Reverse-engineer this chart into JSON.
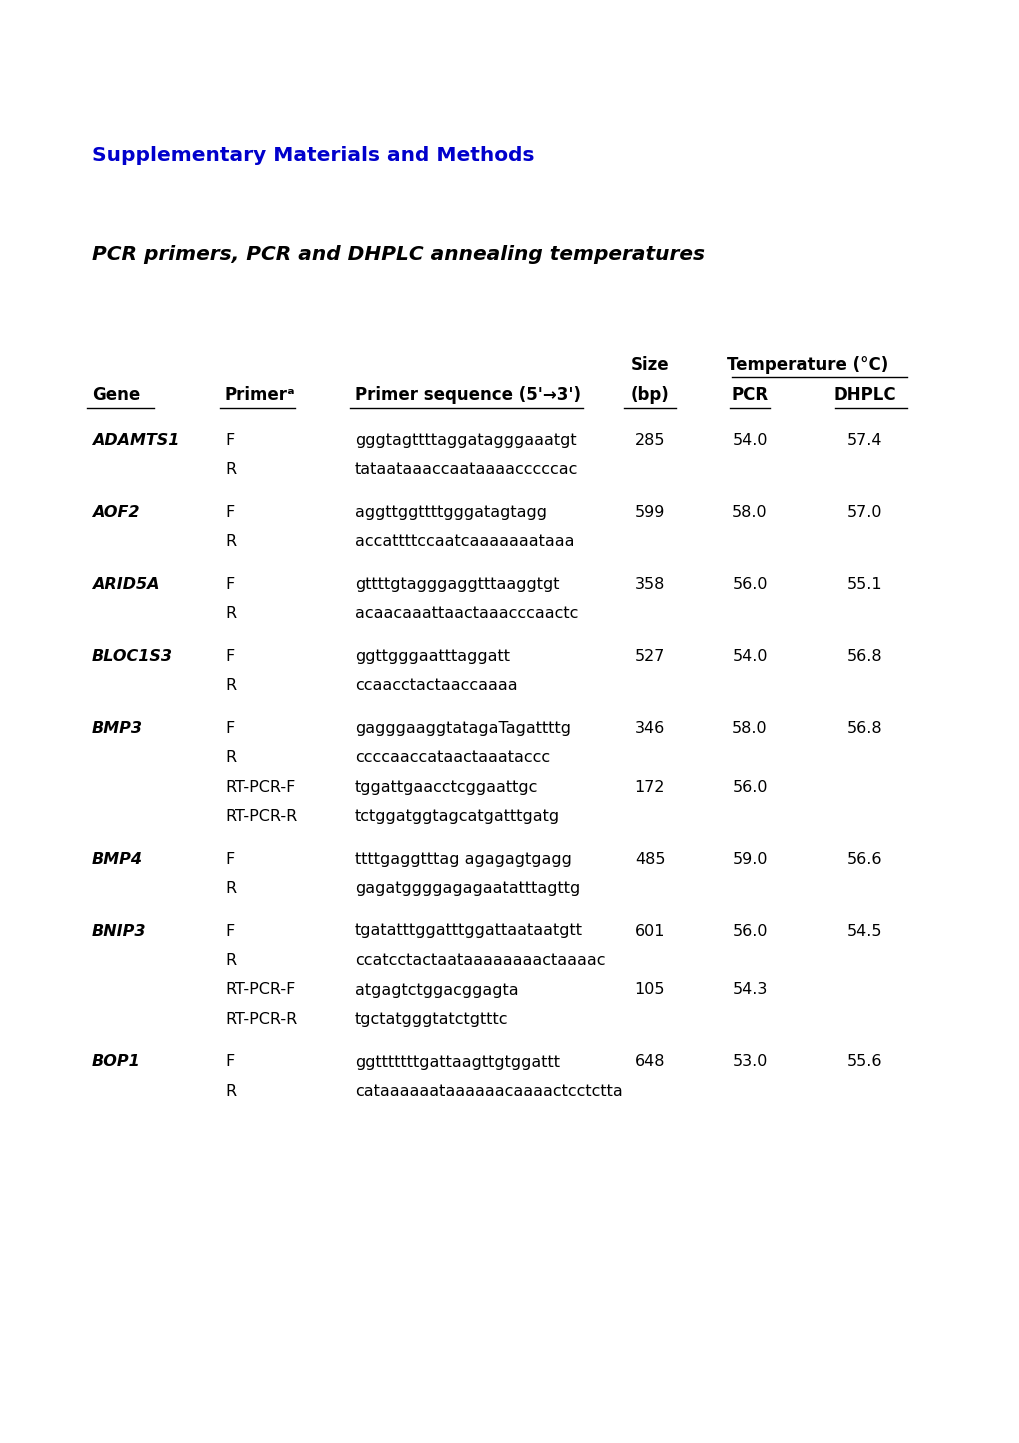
{
  "title_supplementary": "Supplementary Materials and Methods",
  "title_table": "PCR primers, PCR and DHPLC annealing temperatures",
  "bg_color": "#ffffff",
  "title_supp_color": "#0000cc",
  "title_table_color": "#000000",
  "rows": [
    {
      "gene": "ADAMTS1",
      "primer": "F",
      "sequence": "gggtagttttaggatagggaaatgt",
      "size": "285",
      "pcr": "54.0",
      "dhplc": "57.4"
    },
    {
      "gene": "",
      "primer": "R",
      "sequence": "tataataaaccaataaaacccccac",
      "size": "",
      "pcr": "",
      "dhplc": ""
    },
    {
      "gene": "AOF2",
      "primer": "F",
      "sequence": "aggttggttttgggatagtagg",
      "size": "599",
      "pcr": "58.0",
      "dhplc": "57.0"
    },
    {
      "gene": "",
      "primer": "R",
      "sequence": "accattttccaatcaaaaaaataaa",
      "size": "",
      "pcr": "",
      "dhplc": ""
    },
    {
      "gene": "ARID5A",
      "primer": "F",
      "sequence": "gttttgtagggaggtttaaggtgt",
      "size": "358",
      "pcr": "56.0",
      "dhplc": "55.1"
    },
    {
      "gene": "",
      "primer": "R",
      "sequence": "acaacaaattaactaaacccaactc",
      "size": "",
      "pcr": "",
      "dhplc": ""
    },
    {
      "gene": "BLOC1S3",
      "primer": "F",
      "sequence": "ggttgggaatttaggatt",
      "size": "527",
      "pcr": "54.0",
      "dhplc": "56.8"
    },
    {
      "gene": "",
      "primer": "R",
      "sequence": "ccaacctactaaccaaaa",
      "size": "",
      "pcr": "",
      "dhplc": ""
    },
    {
      "gene": "BMP3",
      "primer": "F",
      "sequence": "gagggaaggtatagaTagattttg",
      "size": "346",
      "pcr": "58.0",
      "dhplc": "56.8"
    },
    {
      "gene": "",
      "primer": "R",
      "sequence": "ccccaaccataactaaataccc",
      "size": "",
      "pcr": "",
      "dhplc": ""
    },
    {
      "gene": "",
      "primer": "RT-PCR-F",
      "sequence": "tggattgaacctcggaattgc",
      "size": "172",
      "pcr": "56.0",
      "dhplc": ""
    },
    {
      "gene": "",
      "primer": "RT-PCR-R",
      "sequence": "tctggatggtagcatgatttgatg",
      "size": "",
      "pcr": "",
      "dhplc": ""
    },
    {
      "gene": "BMP4",
      "primer": "F",
      "sequence": "ttttgaggtttag agagagtgagg",
      "size": "485",
      "pcr": "59.0",
      "dhplc": "56.6"
    },
    {
      "gene": "",
      "primer": "R",
      "sequence": "gagatggggagagaatatttagttg",
      "size": "",
      "pcr": "",
      "dhplc": ""
    },
    {
      "gene": "BNIP3",
      "primer": "F",
      "sequence": "tgatatttggatttggattaataatgtt",
      "size": "601",
      "pcr": "56.0",
      "dhplc": "54.5"
    },
    {
      "gene": "",
      "primer": "R",
      "sequence": "ccatcctactaataaaaaaaactaaaac",
      "size": "",
      "pcr": "",
      "dhplc": ""
    },
    {
      "gene": "",
      "primer": "RT-PCR-F",
      "sequence": "atgagtctggacggagta",
      "size": "105",
      "pcr": "54.3",
      "dhplc": ""
    },
    {
      "gene": "",
      "primer": "RT-PCR-R",
      "sequence": "tgctatgggtatctgtttc",
      "size": "",
      "pcr": "",
      "dhplc": ""
    },
    {
      "gene": "BOP1",
      "primer": "F",
      "sequence": "ggtttttttgattaagttgtggattt",
      "size": "648",
      "pcr": "53.0",
      "dhplc": "55.6"
    },
    {
      "gene": "",
      "primer": "R",
      "sequence": "cataaaaaataaaaaacaaaactcctctta",
      "size": "",
      "pcr": "",
      "dhplc": ""
    }
  ],
  "col_x_inch": {
    "gene": 0.92,
    "primer": 2.25,
    "sequence": 3.55,
    "size": 6.5,
    "pcr": 7.5,
    "dhplc": 8.65
  },
  "font_size_body": 11.5,
  "font_size_header": 12.0,
  "font_size_title_supp": 14.5,
  "font_size_title_table": 14.5,
  "fig_width": 10.2,
  "fig_height": 14.43,
  "dpi": 100
}
